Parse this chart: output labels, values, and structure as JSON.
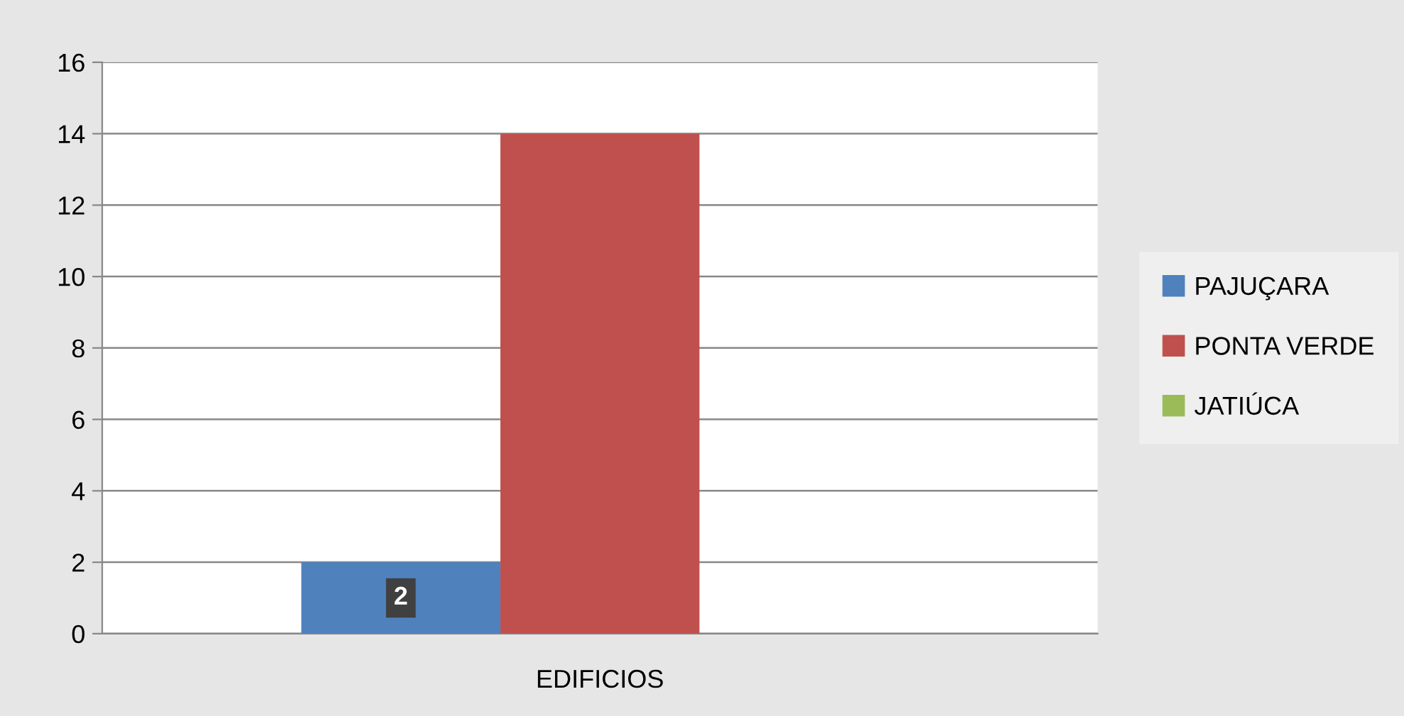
{
  "chart_data": {
    "type": "bar",
    "categories": [
      "EDIFICIOS"
    ],
    "series": [
      {
        "name": "PAJUÇARA",
        "color": "#4f81bd",
        "values": [
          2
        ],
        "value_labels": [
          "2"
        ]
      },
      {
        "name": "PONTA VERDE",
        "color": "#c0504d",
        "values": [
          14
        ]
      },
      {
        "name": "JATIÚCA",
        "color": "#9bbb59",
        "values": [
          0
        ]
      }
    ],
    "ylim": [
      0,
      16
    ],
    "yticks": [
      0,
      2,
      4,
      6,
      8,
      10,
      12,
      14,
      16
    ],
    "grid": "y",
    "legend": "right"
  }
}
